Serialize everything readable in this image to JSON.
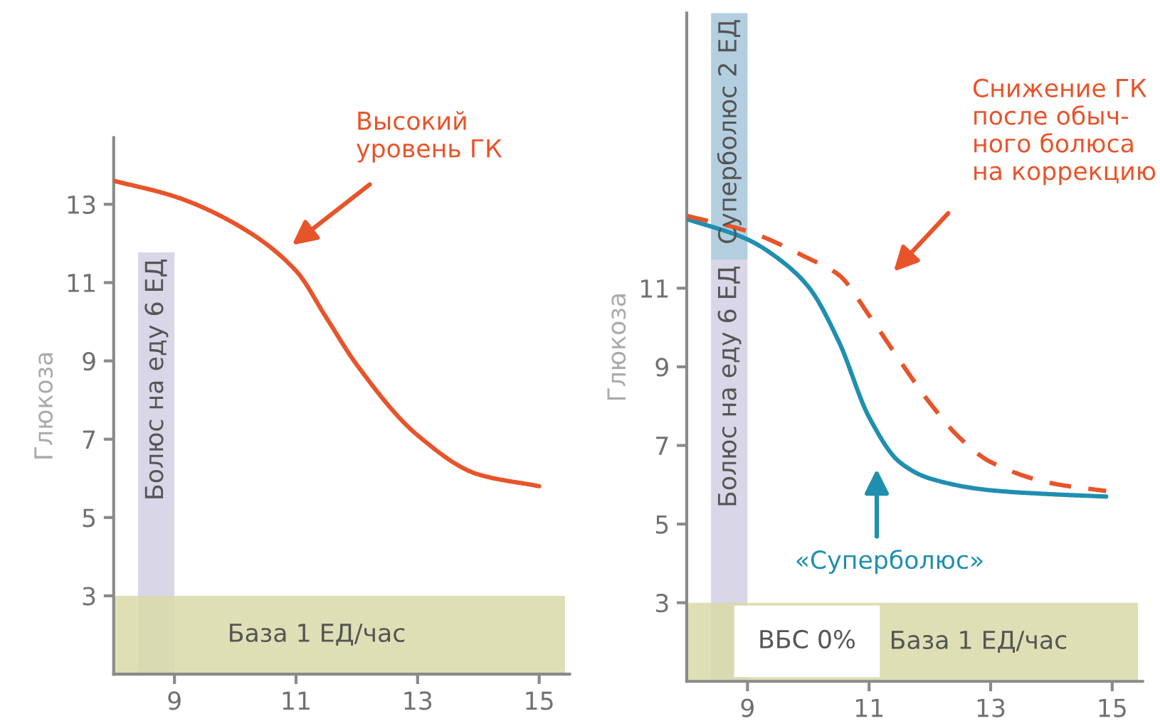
{
  "chart_data": [
    {
      "type": "line",
      "ylabel": "Глюкоза",
      "xlim": [
        8,
        15.5
      ],
      "ylim": [
        1,
        14.7
      ],
      "xticks": [
        9,
        11,
        13,
        15
      ],
      "yticks": [
        3,
        5,
        7,
        9,
        11,
        13
      ],
      "grid": false,
      "legend": false,
      "series": [
        {
          "color": "#e8542a",
          "line_style": "solid",
          "x": [
            8,
            9,
            10,
            11,
            11.5,
            12,
            13,
            14,
            15
          ],
          "values": [
            13.6,
            13.2,
            12.5,
            11.3,
            10.1,
            8.9,
            7.1,
            6.1,
            5.8
          ]
        },
        {
          "type": "bar",
          "name": "Болюс на еду 6 ЕД",
          "color": "#d9d6e8",
          "x": [
            8.7
          ],
          "base": [
            1
          ],
          "values": [
            10.77
          ]
        }
      ],
      "bands": [
        {
          "axis": "y",
          "from": 1,
          "to": 3,
          "label": "База 1 ЕД/час",
          "color": "#d8d9a8"
        }
      ],
      "annotations": [
        "Высокий\nуровень ГК"
      ]
    },
    {
      "type": "line",
      "ylabel": "Глюкоза",
      "xlim": [
        8,
        15.5
      ],
      "ylim": [
        1,
        18
      ],
      "xticks": [
        9,
        11,
        13,
        15
      ],
      "yticks": [
        3,
        5,
        7,
        9,
        11
      ],
      "grid": false,
      "legend": false,
      "stacked": true,
      "series": [
        {
          "color": "#1f8fb0",
          "line_style": "solid",
          "x": [
            8,
            9,
            9.5,
            10,
            10.5,
            11,
            11.5,
            12,
            13,
            14,
            14.9
          ],
          "values": [
            12.76,
            12.24,
            11.76,
            11.04,
            9.65,
            7.72,
            6.58,
            6.16,
            5.86,
            5.76,
            5.7
          ]
        },
        {
          "color": "#e8542a",
          "line_style": "dashed",
          "x": [
            8,
            9,
            10,
            10.5,
            11,
            11.5,
            12,
            12.5,
            13,
            14,
            14.9
          ],
          "values": [
            12.84,
            12.45,
            11.76,
            11.34,
            10.31,
            9.17,
            8.08,
            7.18,
            6.58,
            6.04,
            5.84
          ]
        },
        {
          "type": "bar",
          "name": "Болюс на еду 6 ЕД",
          "color": "#d9d6e8",
          "x": [
            8.7
          ],
          "base": [
            1
          ],
          "values": [
            10.73
          ]
        },
        {
          "type": "bar",
          "name": "Суперболюс 2 ЕД",
          "color": "#b3cfdf",
          "x": [
            8.7
          ],
          "values": [
            6.27
          ]
        }
      ],
      "bands": [
        {
          "axis": "y",
          "from": 1,
          "to": 3,
          "label": "База 1 ЕД/час",
          "color": "#d8d9a8"
        }
      ],
      "annotations": [
        "«Суперболюс»",
        "Снижение ГК\nпосле обыч-\nного болюса\nна коррекцию",
        "ВБС 0%"
      ]
    }
  ]
}
